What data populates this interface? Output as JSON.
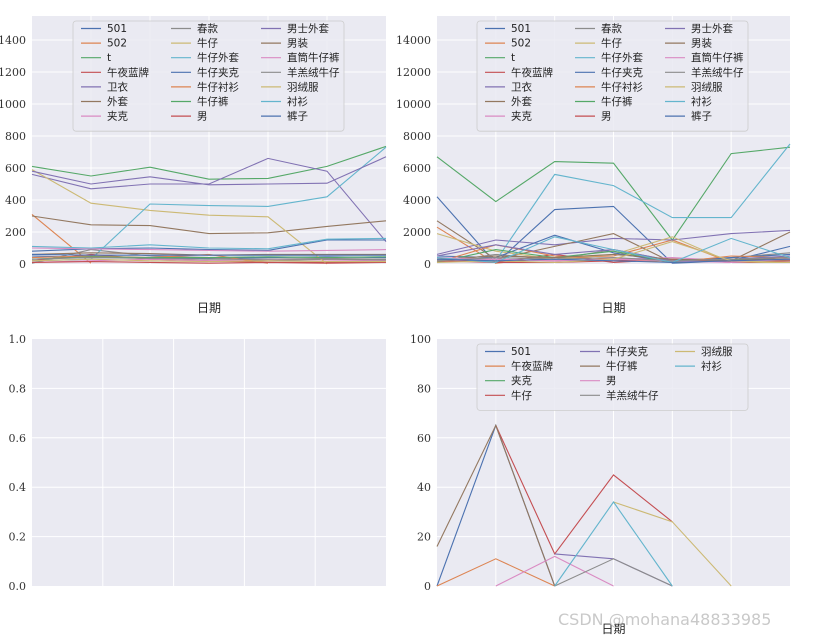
{
  "watermark": "CSDN @mohana48833985",
  "chart_data": [
    {
      "type": "line",
      "xlabel": "日期",
      "ylim": [
        0,
        1550
      ],
      "yticks": [
        0,
        200,
        400,
        600,
        800,
        1000,
        1200,
        1400
      ],
      "x_count": 7,
      "grid": true,
      "legend": {
        "placement": "top-center",
        "columns": 3
      },
      "series": [
        {
          "name": "501",
          "color": "#4c72b0",
          "values": [
            50,
            40,
            40,
            35,
            40,
            45,
            40
          ]
        },
        {
          "name": "502",
          "color": "#dd8452",
          "values": [
            310,
            5,
            null,
            null,
            null,
            null,
            null
          ]
        },
        {
          "name": "t",
          "color": "#55a868",
          "values": [
            610,
            550,
            605,
            530,
            535,
            610,
            735
          ]
        },
        {
          "name": "午夜蓝牌",
          "color": "#c44e52",
          "values": [
            20,
            60,
            30,
            20,
            10,
            10,
            10
          ]
        },
        {
          "name": "卫衣",
          "color": "#8172b3",
          "values": [
            560,
            470,
            500,
            500,
            660,
            580,
            140
          ]
        },
        {
          "name": "外套",
          "color": "#937860",
          "values": [
            300,
            245,
            240,
            190,
            195,
            235,
            270
          ]
        },
        {
          "name": "夹克",
          "color": "#da8bc3",
          "values": [
            10,
            20,
            30,
            20,
            30,
            25,
            20
          ]
        },
        {
          "name": "春款",
          "color": "#8c8c8c",
          "values": [
            5,
            90,
            50,
            40,
            20,
            30,
            25
          ]
        },
        {
          "name": "牛仔",
          "color": "#ccb974",
          "values": [
            590,
            380,
            335,
            305,
            295,
            0,
            null
          ]
        },
        {
          "name": "牛仔外套",
          "color": "#64b5cd",
          "values": [
            20,
            30,
            375,
            365,
            360,
            420,
            730
          ]
        },
        {
          "name": "牛仔夹克",
          "color": "#4c72b0",
          "values": [
            80,
            95,
            100,
            90,
            85,
            150,
            150
          ]
        },
        {
          "name": "牛仔衬衫",
          "color": "#dd8452",
          "values": [
            40,
            50,
            40,
            60,
            5,
            null,
            null
          ]
        },
        {
          "name": "牛仔裤",
          "color": "#55a868",
          "values": [
            30,
            45,
            40,
            40,
            45,
            40,
            45
          ]
        },
        {
          "name": "男",
          "color": "#c44e52",
          "values": [
            10,
            15,
            10,
            5,
            10,
            5,
            10
          ]
        },
        {
          "name": "男士外套",
          "color": "#8172b3",
          "values": [
            580,
            500,
            545,
            495,
            500,
            505,
            670
          ]
        },
        {
          "name": "男装",
          "color": "#937860",
          "values": [
            60,
            70,
            65,
            55,
            60,
            60,
            60
          ]
        },
        {
          "name": "直筒牛仔裤",
          "color": "#da8bc3",
          "values": [
            100,
            95,
            90,
            85,
            80,
            85,
            90
          ]
        },
        {
          "name": "羊羔绒牛仔",
          "color": "#8c8c8c",
          "values": [
            30,
            40,
            35,
            30,
            30,
            35,
            30
          ]
        },
        {
          "name": "羽绒服",
          "color": "#ccb974",
          "values": [
            20,
            30,
            20,
            15,
            20,
            15,
            15
          ]
        },
        {
          "name": "衬衫",
          "color": "#64b5cd",
          "values": [
            110,
            100,
            120,
            100,
            95,
            155,
            160
          ]
        },
        {
          "name": "裤子",
          "color": "#4c72b0",
          "values": [
            60,
            55,
            55,
            55,
            55,
            55,
            55
          ]
        }
      ]
    },
    {
      "type": "line",
      "xlabel": "日期",
      "ylim": [
        0,
        15500
      ],
      "yticks": [
        0,
        2000,
        4000,
        6000,
        8000,
        10000,
        12000,
        14000
      ],
      "x_count": 7,
      "grid": true,
      "legend": {
        "placement": "top-center",
        "columns": 3
      },
      "series": [
        {
          "name": "501",
          "color": "#4c72b0",
          "values": [
            4200,
            50,
            3400,
            3600,
            50,
            200,
            1100
          ]
        },
        {
          "name": "502",
          "color": "#dd8452",
          "values": [
            2300,
            50,
            400,
            500,
            1500,
            100,
            300
          ]
        },
        {
          "name": "t",
          "color": "#55a868",
          "values": [
            6700,
            3900,
            6400,
            6300,
            1500,
            6900,
            7300
          ]
        },
        {
          "name": "午夜蓝牌",
          "color": "#c44e52",
          "values": [
            300,
            100,
            600,
            100,
            300,
            200,
            300
          ]
        },
        {
          "name": "卫衣",
          "color": "#8172b3",
          "values": [
            600,
            1500,
            1200,
            1600,
            1500,
            1900,
            2100
          ]
        },
        {
          "name": "外套",
          "color": "#937860",
          "values": [
            2700,
            300,
            1100,
            1900,
            100,
            200,
            2000
          ]
        },
        {
          "name": "夹克",
          "color": "#da8bc3",
          "values": [
            200,
            300,
            200,
            300,
            400,
            200,
            100
          ]
        },
        {
          "name": "春款",
          "color": "#8c8c8c",
          "values": [
            100,
            600,
            300,
            900,
            200,
            400,
            700
          ]
        },
        {
          "name": "牛仔",
          "color": "#ccb974",
          "values": [
            1900,
            800,
            300,
            600,
            1700,
            100,
            100
          ]
        },
        {
          "name": "牛仔外套",
          "color": "#64b5cd",
          "values": [
            300,
            200,
            5600,
            4900,
            2900,
            2900,
            7500
          ]
        },
        {
          "name": "牛仔夹克",
          "color": "#4c72b0",
          "values": [
            500,
            400,
            1800,
            700,
            100,
            400,
            600
          ]
        },
        {
          "name": "牛仔衬衫",
          "color": "#dd8452",
          "values": [
            100,
            1200,
            500,
            300,
            100,
            500,
            400
          ]
        },
        {
          "name": "牛仔裤",
          "color": "#55a868",
          "values": [
            100,
            900,
            400,
            800,
            100,
            300,
            200
          ]
        },
        {
          "name": "男",
          "color": "#c44e52",
          "values": [
            200,
            100,
            100,
            200,
            300,
            100,
            200
          ]
        },
        {
          "name": "男士外套",
          "color": "#8172b3",
          "values": [
            500,
            1200,
            600,
            900,
            200,
            300,
            500
          ]
        },
        {
          "name": "男装",
          "color": "#937860",
          "values": [
            300,
            500,
            400,
            600,
            300,
            200,
            400
          ]
        },
        {
          "name": "直筒牛仔裤",
          "color": "#da8bc3",
          "values": [
            400,
            300,
            200,
            300,
            200,
            100,
            300
          ]
        },
        {
          "name": "羊羔绒牛仔",
          "color": "#8c8c8c",
          "values": [
            200,
            400,
            300,
            400,
            200,
            300,
            400
          ]
        },
        {
          "name": "羽绒服",
          "color": "#ccb974",
          "values": [
            100,
            200,
            100,
            300,
            1400,
            200,
            100
          ]
        },
        {
          "name": "衬衫",
          "color": "#64b5cd",
          "values": [
            400,
            100,
            1700,
            900,
            100,
            1600,
            400
          ]
        },
        {
          "name": "裤子",
          "color": "#4c72b0",
          "values": [
            300,
            200,
            300,
            200,
            100,
            200,
            300
          ]
        }
      ]
    },
    {
      "type": "line",
      "xlabel": "",
      "ylim": [
        0,
        1
      ],
      "yticks": [
        "0.0",
        "0.2",
        "0.4",
        "0.6",
        "0.8",
        "1.0"
      ],
      "x_count": 6,
      "grid": true,
      "series": []
    },
    {
      "type": "line",
      "xlabel": "日期",
      "ylim": [
        0,
        100
      ],
      "yticks": [
        0,
        20,
        40,
        60,
        80,
        100
      ],
      "x_count": 7,
      "grid": true,
      "legend": {
        "placement": "top-center",
        "columns": 3
      },
      "series": [
        {
          "name": "501",
          "color": "#4c72b0",
          "values": [
            0,
            65,
            0,
            null,
            null,
            null,
            null
          ]
        },
        {
          "name": "午夜蓝牌",
          "color": "#dd8452",
          "values": [
            0,
            11,
            0,
            null,
            null,
            null,
            null
          ]
        },
        {
          "name": "夹克",
          "color": "#55a868",
          "values": [
            null,
            null,
            null,
            null,
            null,
            null,
            null
          ]
        },
        {
          "name": "牛仔",
          "color": "#c44e52",
          "values": [
            null,
            65,
            13,
            45,
            26,
            null,
            null
          ]
        },
        {
          "name": "牛仔夹克",
          "color": "#8172b3",
          "values": [
            null,
            null,
            13,
            11,
            0,
            null,
            null
          ]
        },
        {
          "name": "牛仔裤",
          "color": "#937860",
          "values": [
            16,
            65,
            0,
            null,
            null,
            null,
            null
          ]
        },
        {
          "name": "男",
          "color": "#da8bc3",
          "values": [
            null,
            0,
            12,
            0,
            null,
            null,
            null
          ]
        },
        {
          "name": "羊羔绒牛仔",
          "color": "#8c8c8c",
          "values": [
            null,
            null,
            0,
            11,
            0,
            null,
            null
          ]
        },
        {
          "name": "羽绒服",
          "color": "#ccb974",
          "values": [
            null,
            null,
            null,
            34,
            26,
            0,
            null
          ]
        },
        {
          "name": "衬衫",
          "color": "#64b5cd",
          "values": [
            null,
            null,
            0,
            34,
            0,
            null,
            null
          ]
        }
      ]
    }
  ]
}
